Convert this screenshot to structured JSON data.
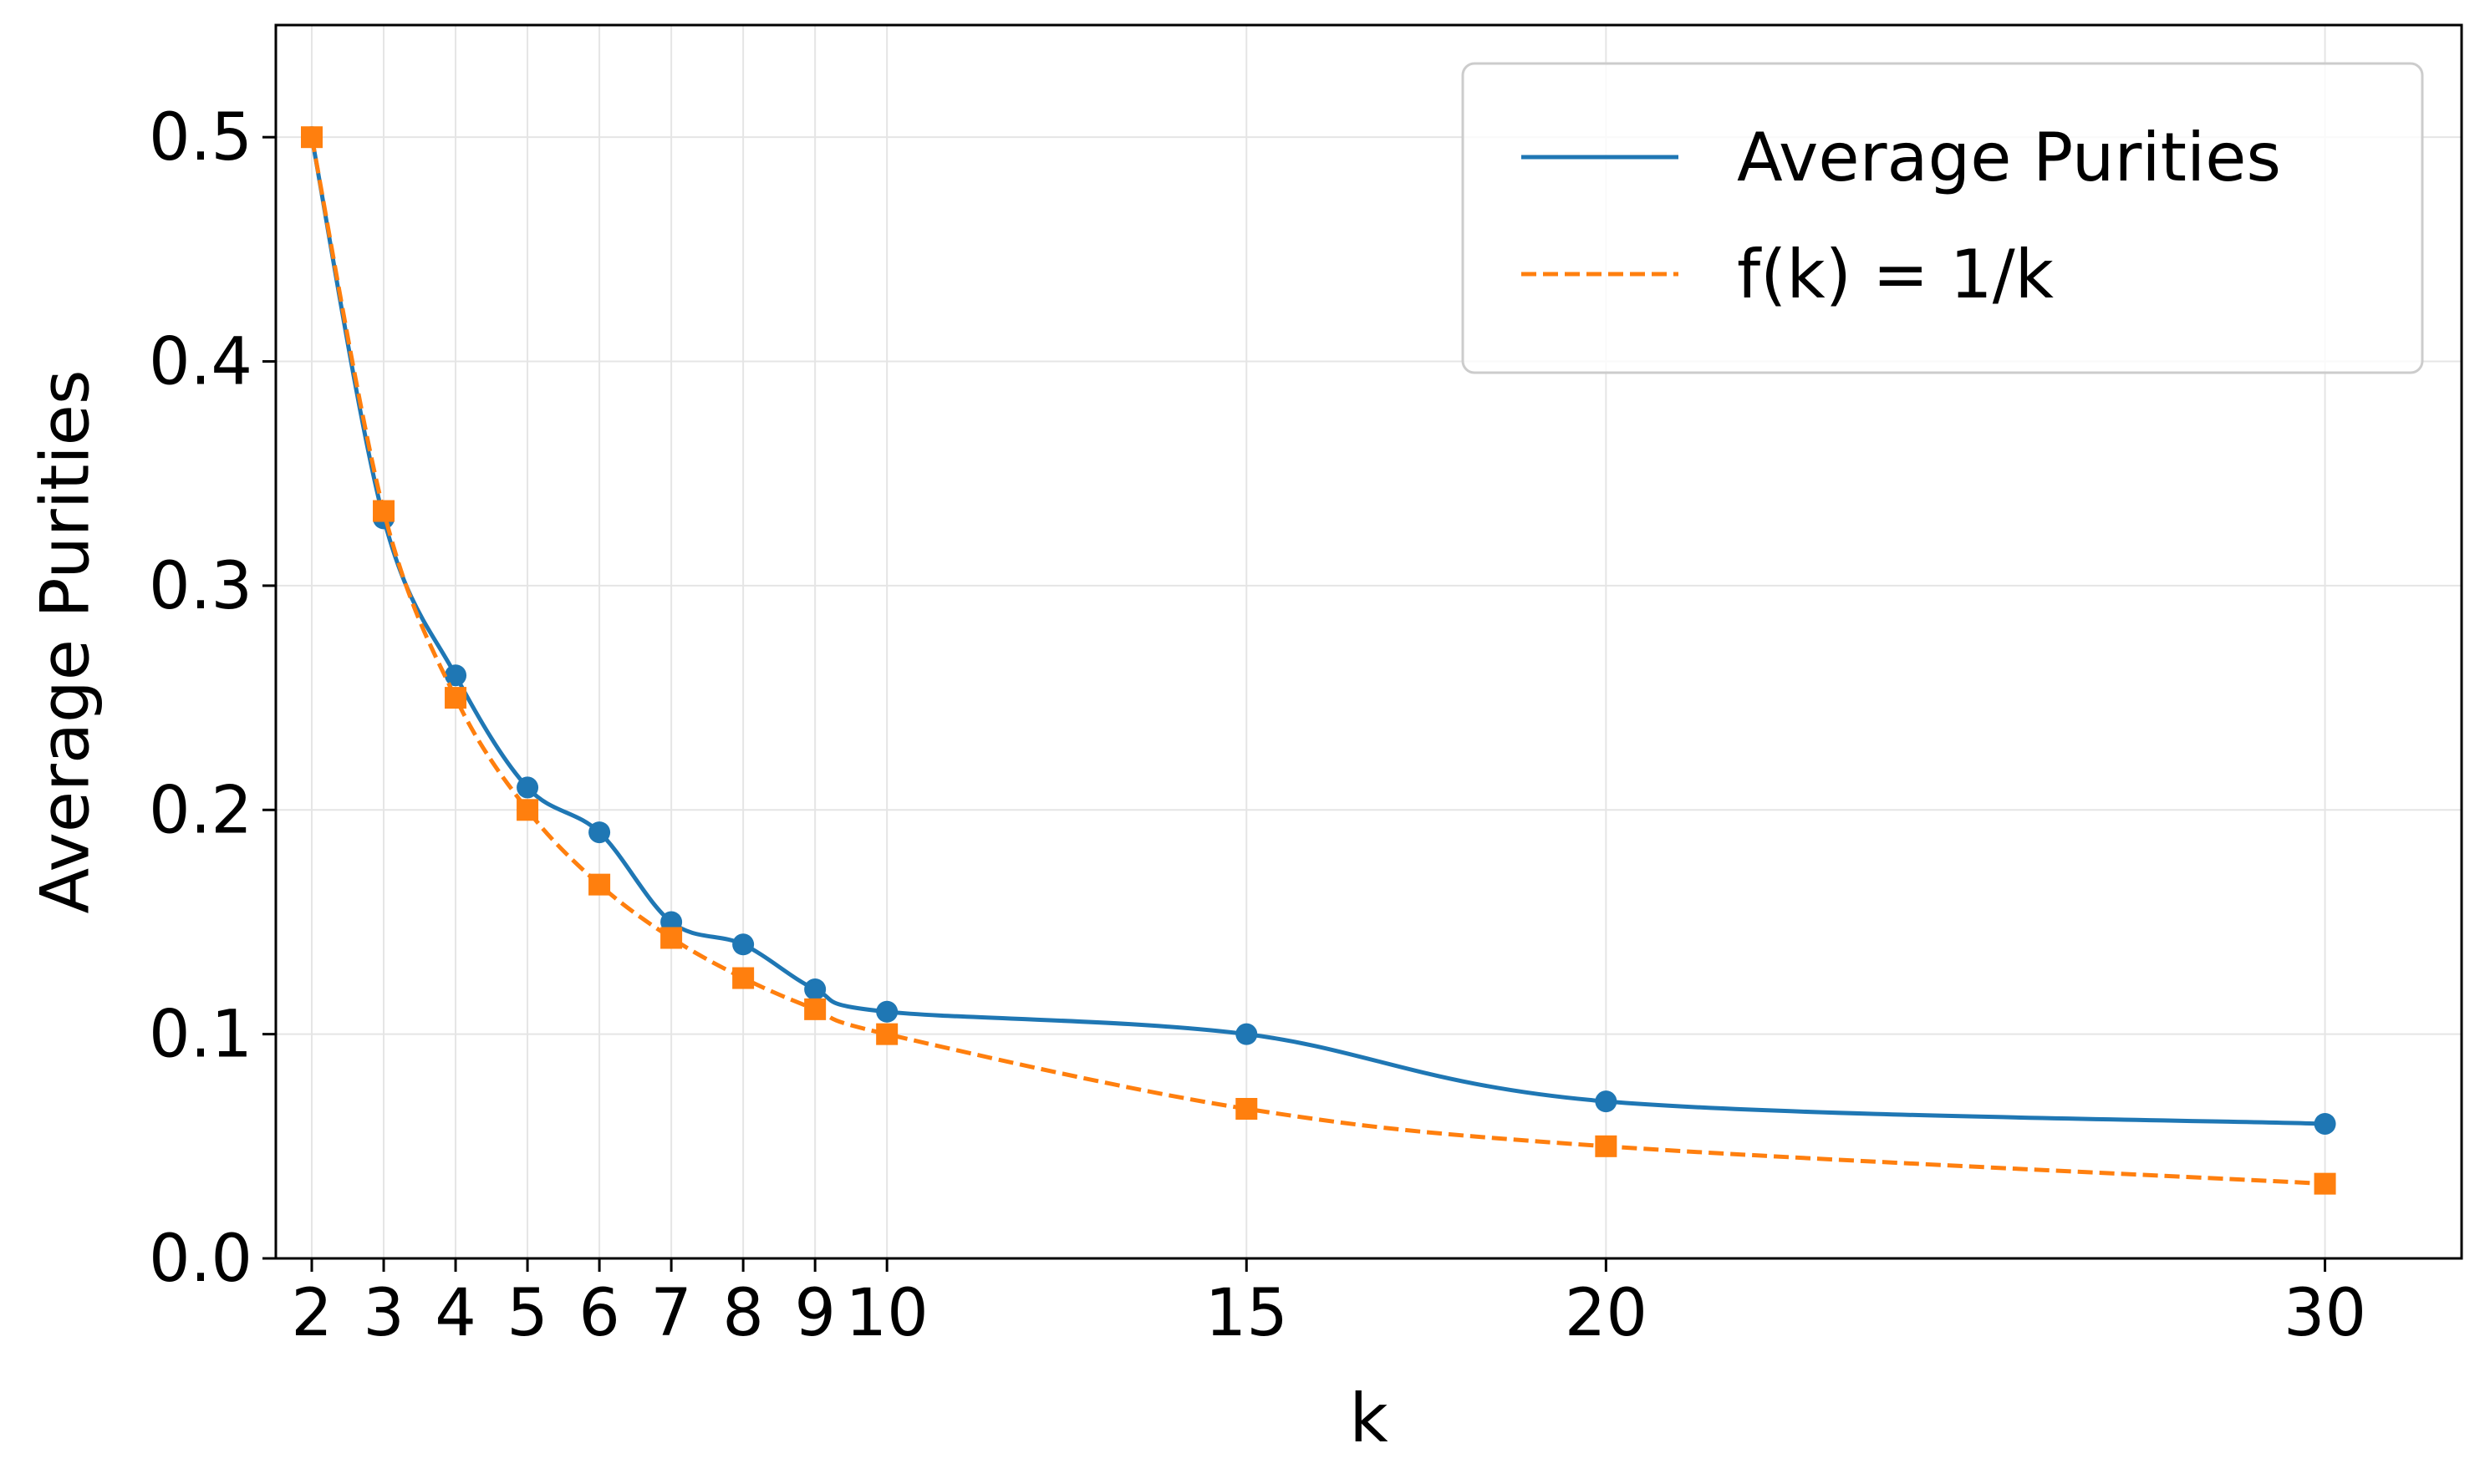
{
  "chart_data": {
    "type": "line",
    "title": "",
    "xlabel": "k",
    "ylabel": "Average Purities",
    "x": [
      2,
      3,
      4,
      5,
      6,
      7,
      8,
      9,
      10,
      15,
      20,
      30
    ],
    "xticks": [
      2,
      3,
      4,
      5,
      6,
      7,
      8,
      9,
      10,
      15,
      20,
      30
    ],
    "xtick_labels": [
      "2",
      "3",
      "4",
      "5",
      "6",
      "7",
      "8",
      "9",
      "10",
      "15",
      "20",
      "30"
    ],
    "xlim": [
      1.5,
      31.9
    ],
    "yticks": [
      0.0,
      0.1,
      0.2,
      0.3,
      0.4,
      0.5
    ],
    "ytick_labels": [
      "0.0",
      "0.1",
      "0.2",
      "0.3",
      "0.4",
      "0.5"
    ],
    "ylim": [
      0.0,
      0.55
    ],
    "grid": true,
    "legend_position": "top-right",
    "series": [
      {
        "name": "Average Purities",
        "values": [
          0.5,
          0.33,
          0.26,
          0.21,
          0.19,
          0.15,
          0.14,
          0.12,
          0.11,
          0.1,
          0.07,
          0.06
        ],
        "color": "#1f77b4",
        "line_style": "solid",
        "marker": "circle",
        "smooth": true
      },
      {
        "name": "f(k) = 1/k",
        "values": [
          0.5,
          0.3333,
          0.25,
          0.2,
          0.1667,
          0.1429,
          0.125,
          0.1111,
          0.1,
          0.0667,
          0.05,
          0.0333
        ],
        "color": "#ff7f0e",
        "line_style": "dashed",
        "marker": "square",
        "smooth": true
      }
    ]
  }
}
